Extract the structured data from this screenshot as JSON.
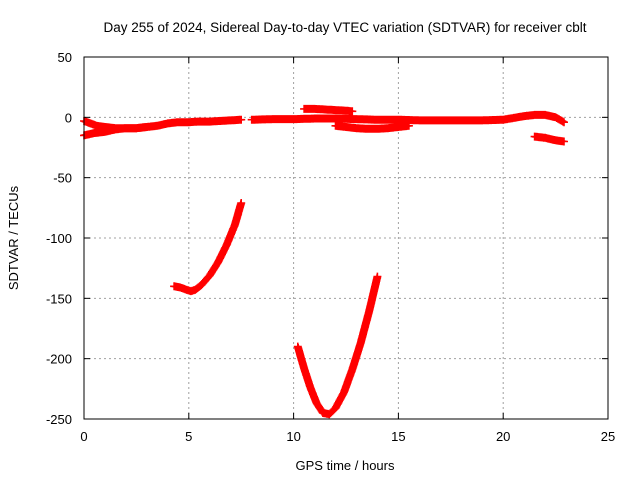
{
  "chart_data": {
    "type": "scatter",
    "title": "Day 255 of 2024, Sidereal Day-to-day VTEC variation (SDTVAR) for receiver cblt",
    "xlabel": "GPS time / hours",
    "ylabel": "SDTVAR / TECUs",
    "xlim": [
      0,
      25
    ],
    "ylim": [
      -250,
      50
    ],
    "xticks": [
      0,
      5,
      10,
      15,
      20,
      25
    ],
    "yticks": [
      -250,
      -200,
      -150,
      -100,
      -50,
      0,
      50
    ],
    "xtick_labels": [
      "0",
      "5",
      "10",
      "15",
      "20",
      "25"
    ],
    "ytick_labels": [
      "-250",
      "-200",
      "-150",
      "-100",
      "-50",
      "0",
      "50"
    ],
    "grid": true,
    "marker": "plus",
    "color": "#ff0000",
    "series": [
      {
        "values": [
          [
            0.0,
            -15
          ],
          [
            0.5,
            -13
          ],
          [
            1.0,
            -12
          ],
          [
            1.5,
            -10
          ],
          [
            2.0,
            -9
          ],
          [
            2.5,
            -9
          ],
          [
            3.0,
            -8
          ],
          [
            3.5,
            -7
          ],
          [
            4.0,
            -5
          ],
          [
            4.5,
            -4
          ],
          [
            5.0,
            -4
          ],
          [
            5.5,
            -3.5
          ],
          [
            6.0,
            -3.5
          ],
          [
            6.5,
            -3
          ],
          [
            7.0,
            -2.5
          ],
          [
            7.5,
            -2
          ]
        ]
      },
      {
        "values": [
          [
            0.0,
            -3
          ],
          [
            0.3,
            -5
          ],
          [
            0.6,
            -7
          ],
          [
            1.0,
            -8
          ],
          [
            1.5,
            -9
          ],
          [
            2.0,
            -9
          ],
          [
            2.5,
            -9
          ],
          [
            3.0,
            -8
          ]
        ]
      },
      {
        "values": [
          [
            8.0,
            -2
          ],
          [
            9.0,
            -1.5
          ],
          [
            10.0,
            -1.5
          ],
          [
            11.0,
            -1
          ],
          [
            12.0,
            -1
          ],
          [
            13.0,
            -1.5
          ],
          [
            14.0,
            -2
          ],
          [
            15.0,
            -2
          ],
          [
            16.0,
            -2.5
          ],
          [
            17.0,
            -2.5
          ],
          [
            18.0,
            -2.5
          ],
          [
            19.0,
            -2.5
          ],
          [
            20.0,
            -2
          ],
          [
            20.5,
            -0.5
          ],
          [
            21.0,
            1
          ],
          [
            21.5,
            2
          ],
          [
            22.0,
            2
          ],
          [
            22.5,
            0
          ],
          [
            22.9,
            -4
          ]
        ]
      },
      {
        "values": [
          [
            10.5,
            7
          ],
          [
            11.0,
            7
          ],
          [
            11.5,
            6.5
          ],
          [
            12.0,
            6
          ],
          [
            12.5,
            5.5
          ],
          [
            12.8,
            5
          ]
        ]
      },
      {
        "values": [
          [
            12.0,
            -7
          ],
          [
            12.5,
            -8
          ],
          [
            13.0,
            -9
          ],
          [
            13.5,
            -9.5
          ],
          [
            14.0,
            -9.5
          ],
          [
            14.5,
            -9
          ],
          [
            15.0,
            -8
          ],
          [
            15.5,
            -7
          ]
        ]
      },
      {
        "values": [
          [
            21.5,
            -16
          ],
          [
            22.0,
            -17
          ],
          [
            22.5,
            -19
          ],
          [
            22.9,
            -20
          ]
        ]
      },
      {
        "values": [
          [
            4.3,
            -140
          ],
          [
            4.6,
            -141
          ],
          [
            4.9,
            -143
          ],
          [
            5.1,
            -144
          ],
          [
            5.3,
            -143
          ],
          [
            5.6,
            -139
          ],
          [
            6.0,
            -131
          ],
          [
            6.4,
            -120
          ],
          [
            6.8,
            -106
          ],
          [
            7.2,
            -89
          ],
          [
            7.5,
            -71
          ]
        ]
      },
      {
        "values": [
          [
            10.2,
            -190
          ],
          [
            10.5,
            -208
          ],
          [
            10.8,
            -224
          ],
          [
            11.1,
            -237
          ],
          [
            11.4,
            -245
          ],
          [
            11.7,
            -246
          ],
          [
            12.0,
            -241
          ],
          [
            12.4,
            -228
          ],
          [
            12.8,
            -209
          ],
          [
            13.2,
            -187
          ],
          [
            13.6,
            -161
          ],
          [
            14.0,
            -132
          ]
        ]
      }
    ]
  }
}
